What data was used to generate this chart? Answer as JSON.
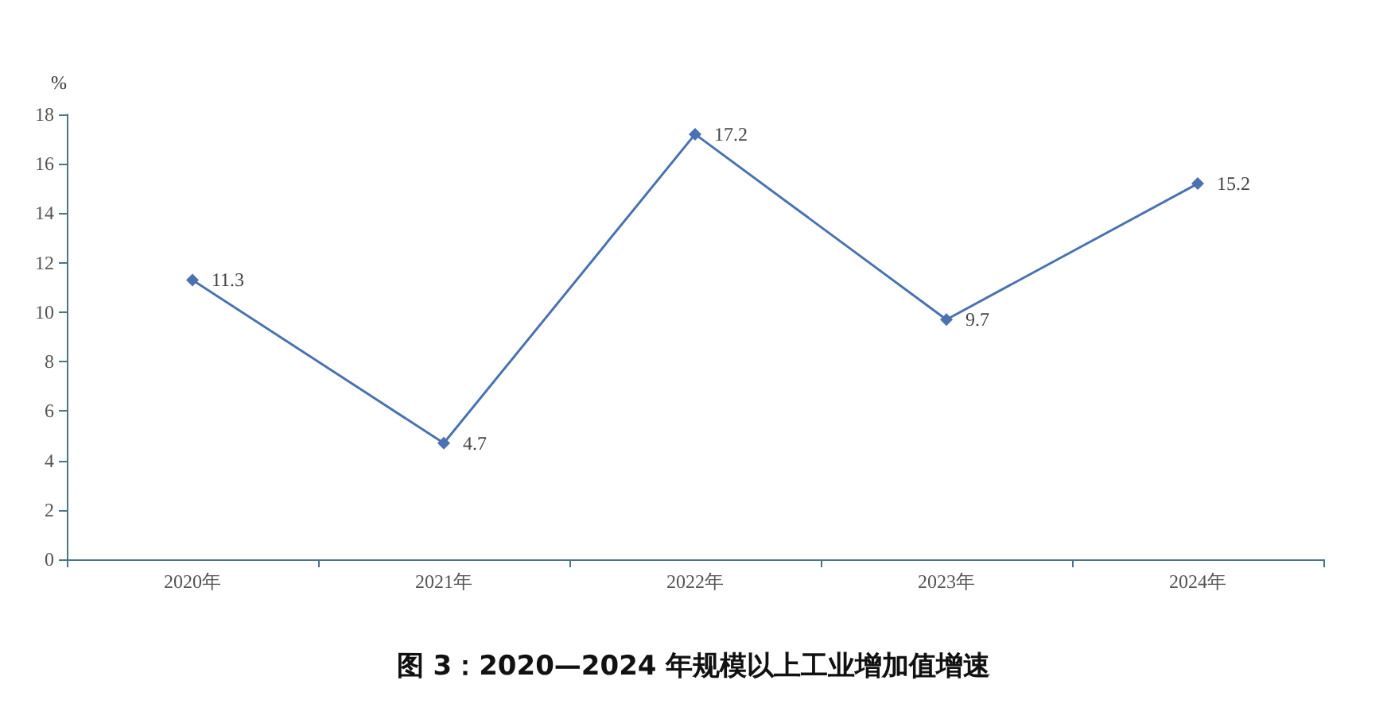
{
  "chart_data": {
    "type": "line",
    "title": "图 3：2020—2024 年规模以上工业增加值增速",
    "ylabel": "%",
    "categories": [
      "2020年",
      "2021年",
      "2022年",
      "2023年",
      "2024年"
    ],
    "series": [
      {
        "color": "#4a72b0",
        "values": [
          11.3,
          4.7,
          17.2,
          9.7,
          15.2
        ]
      }
    ],
    "ylim": [
      0,
      18
    ],
    "yticks": [
      0,
      2,
      4,
      6,
      8,
      10,
      12,
      14,
      16,
      18
    ],
    "grid": false,
    "marker": "diamond",
    "line_style": "solid",
    "data_labels": true
  }
}
